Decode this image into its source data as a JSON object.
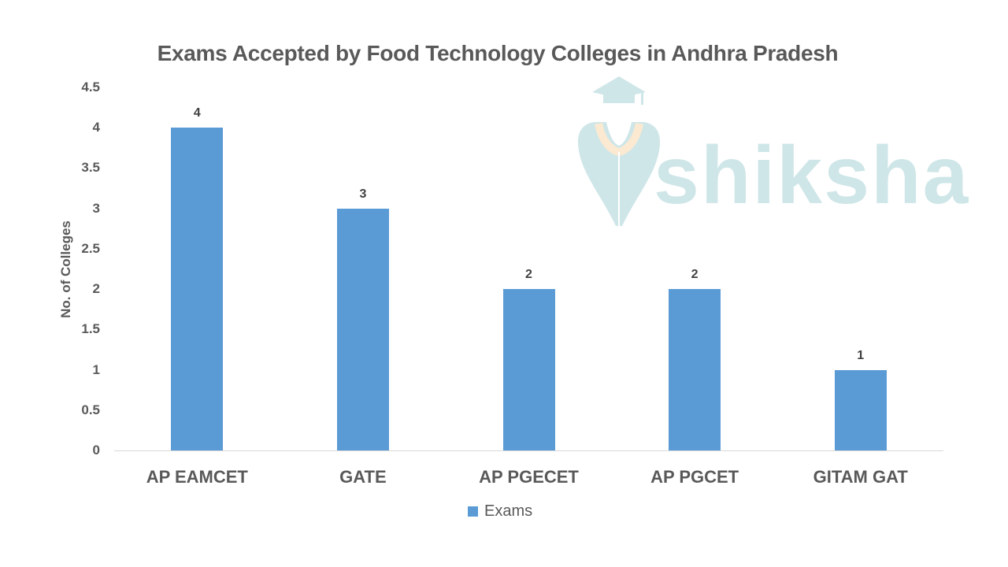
{
  "chart_data": {
    "type": "bar",
    "title": "Exams Accepted by Food Technology Colleges in Andhra Pradesh",
    "xlabel": "",
    "ylabel": "No. of Colleges",
    "categories": [
      "AP EAMCET",
      "GATE",
      "AP PGECET",
      "AP PGCET",
      "GITAM GAT"
    ],
    "series": [
      {
        "name": "Exams",
        "values": [
          4,
          3,
          2,
          2,
          1
        ],
        "color": "#5b9bd5"
      }
    ],
    "ylim": [
      0,
      4.5
    ],
    "yticks": [
      "0",
      "0.5",
      "1",
      "1.5",
      "2",
      "2.5",
      "3",
      "3.5",
      "4",
      "4.5"
    ],
    "data_labels": [
      "4",
      "3",
      "2",
      "2",
      "1"
    ],
    "grid": false,
    "legend_position": "bottom"
  },
  "watermark": {
    "text": "shiksha"
  }
}
